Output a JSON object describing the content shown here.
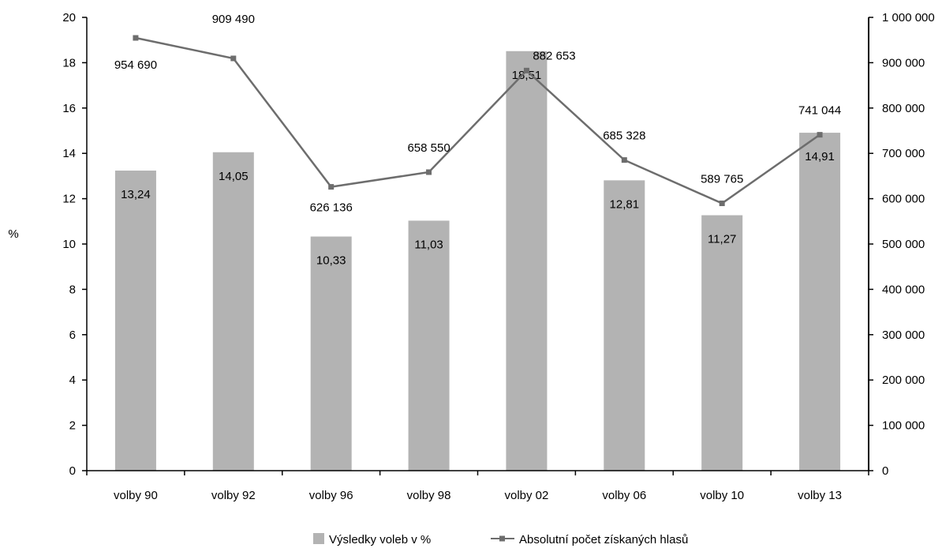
{
  "chart_data": {
    "type": "bar",
    "categories": [
      "volby 90",
      "volby 92",
      "volby 96",
      "volby 98",
      "volby 02",
      "volby 06",
      "volby 10",
      "volby 13"
    ],
    "series": [
      {
        "name": "Výsledky voleb v %",
        "type": "bar",
        "axis": "left",
        "values": [
          13.24,
          14.05,
          10.33,
          11.03,
          18.51,
          12.81,
          11.27,
          14.91
        ],
        "labels": [
          "13,24",
          "14,05",
          "10,33",
          "11,03",
          "18,51",
          "12,81",
          "11,27",
          "14,91"
        ],
        "color": "#b3b3b3"
      },
      {
        "name": "Absolutní počet získaných hlasů",
        "type": "line",
        "axis": "right",
        "values": [
          954690,
          909490,
          626136,
          658550,
          882653,
          685328,
          589765,
          741044
        ],
        "labels": [
          "954 690",
          "909 490",
          "626 136",
          "658 550",
          "882 653",
          "685 328",
          "589 765",
          "741 044"
        ],
        "color": "#6d6d6d"
      }
    ],
    "ylabel": "%",
    "ylim": [
      0,
      20
    ],
    "yticks": [
      "0",
      "2",
      "4",
      "6",
      "8",
      "10",
      "12",
      "14",
      "16",
      "18",
      "20"
    ],
    "y2lim": [
      0,
      1000000
    ],
    "y2ticks": [
      "0",
      "100 000",
      "200 000",
      "300 000",
      "400 000",
      "500 000",
      "600 000",
      "700 000",
      "800 000",
      "900 000",
      "1 000 000"
    ],
    "grid": false,
    "legend_position": "bottom"
  }
}
